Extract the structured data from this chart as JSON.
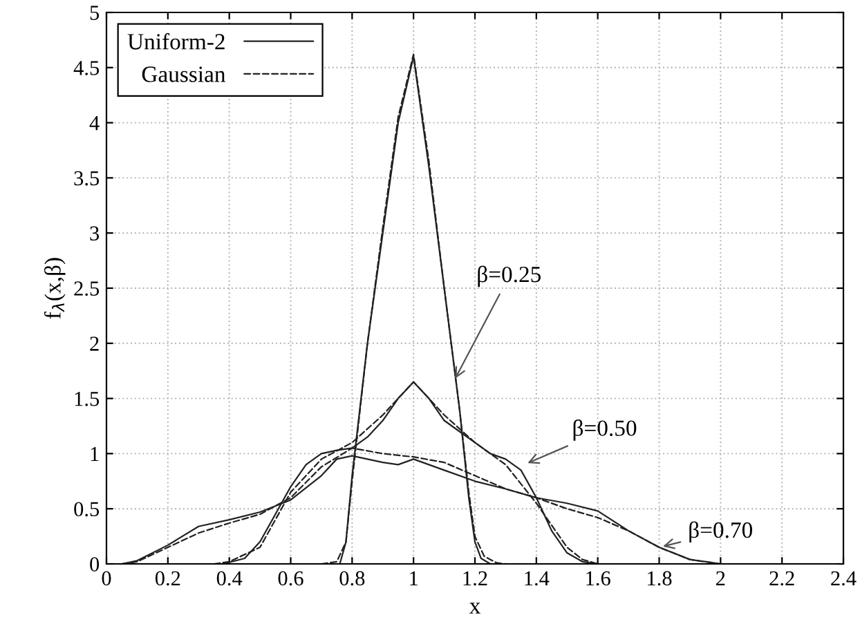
{
  "chart_data": {
    "type": "line",
    "xlabel": "x",
    "ylabel": "f$_{λ}$(x,β)",
    "xlim": [
      0,
      2.4
    ],
    "ylim": [
      0,
      5
    ],
    "xticks": [
      0,
      0.2,
      0.4,
      0.6,
      0.8,
      1,
      1.2,
      1.4,
      1.6,
      1.8,
      2,
      2.2,
      2.4
    ],
    "yticks": [
      0,
      0.5,
      1,
      1.5,
      2,
      2.5,
      3,
      3.5,
      4,
      4.5,
      5
    ],
    "grid": true,
    "legend": "top left",
    "marker": "none",
    "series": [
      {
        "name": "Uniform-2",
        "color": "#222222",
        "line_style": "solid",
        "x": [
          0.7,
          0.76,
          0.78,
          0.8,
          0.85,
          0.9,
          0.95,
          1.0,
          1.05,
          1.1,
          1.15,
          1.18,
          1.2,
          1.22,
          1.25,
          1.3
        ],
        "values": [
          0,
          0,
          0.2,
          0.8,
          2.0,
          3.0,
          4.0,
          4.6,
          3.6,
          2.5,
          1.4,
          0.6,
          0.2,
          0.05,
          0,
          0
        ]
      },
      {
        "name": "Gaussian",
        "color": "#222222",
        "line_style": "dashed",
        "x": [
          0.7,
          0.75,
          0.78,
          0.8,
          0.85,
          0.9,
          0.95,
          1.0,
          1.05,
          1.1,
          1.15,
          1.18,
          1.2,
          1.23,
          1.27,
          1.3
        ],
        "values": [
          0,
          0.02,
          0.2,
          0.75,
          2.0,
          3.05,
          4.05,
          4.62,
          3.65,
          2.5,
          1.4,
          0.65,
          0.25,
          0.07,
          0.01,
          0
        ]
      },
      {
        "color": "#222222",
        "line_style": "solid",
        "x": [
          0.38,
          0.45,
          0.5,
          0.55,
          0.6,
          0.65,
          0.7,
          0.75,
          0.8,
          0.85,
          0.9,
          0.95,
          1.0,
          1.05,
          1.1,
          1.15,
          1.2,
          1.25,
          1.3,
          1.35,
          1.4,
          1.45,
          1.5,
          1.55,
          1.6
        ],
        "values": [
          0,
          0.05,
          0.2,
          0.45,
          0.7,
          0.9,
          1.0,
          1.03,
          1.05,
          1.15,
          1.3,
          1.5,
          1.65,
          1.5,
          1.3,
          1.2,
          1.1,
          1.0,
          0.95,
          0.85,
          0.6,
          0.3,
          0.1,
          0.02,
          0
        ]
      },
      {
        "color": "#222222",
        "line_style": "dashed",
        "x": [
          0.35,
          0.4,
          0.5,
          0.6,
          0.7,
          0.8,
          0.9,
          1.0,
          1.1,
          1.2,
          1.3,
          1.4,
          1.5,
          1.55,
          1.6
        ],
        "values": [
          0,
          0.02,
          0.15,
          0.65,
          0.95,
          1.1,
          1.35,
          1.65,
          1.35,
          1.1,
          0.9,
          0.55,
          0.15,
          0.04,
          0
        ]
      },
      {
        "color": "#222222",
        "line_style": "solid",
        "x": [
          0.05,
          0.1,
          0.2,
          0.3,
          0.4,
          0.5,
          0.6,
          0.7,
          0.75,
          0.8,
          0.85,
          0.9,
          0.95,
          1.0,
          1.1,
          1.2,
          1.3,
          1.4,
          1.5,
          1.6,
          1.7,
          1.8,
          1.9,
          2.0
        ],
        "values": [
          0,
          0.03,
          0.17,
          0.34,
          0.4,
          0.47,
          0.58,
          0.8,
          0.95,
          0.98,
          0.95,
          0.92,
          0.9,
          0.95,
          0.85,
          0.75,
          0.68,
          0.6,
          0.55,
          0.48,
          0.3,
          0.15,
          0.04,
          0
        ]
      },
      {
        "color": "#222222",
        "line_style": "dashed",
        "x": [
          0.05,
          0.1,
          0.2,
          0.3,
          0.4,
          0.5,
          0.6,
          0.7,
          0.8,
          0.9,
          1.0,
          1.1,
          1.2,
          1.3,
          1.4,
          1.5,
          1.6,
          1.7,
          1.8,
          1.9,
          2.0
        ],
        "values": [
          0,
          0.02,
          0.15,
          0.28,
          0.37,
          0.45,
          0.6,
          0.88,
          1.05,
          1.0,
          0.97,
          0.92,
          0.8,
          0.68,
          0.6,
          0.5,
          0.42,
          0.3,
          0.15,
          0.04,
          0
        ]
      }
    ],
    "annotations": [
      {
        "text": "β=0.25",
        "x": 1.13,
        "y": 1.65
      },
      {
        "text": "β=0.50",
        "x": 1.36,
        "y": 0.9
      },
      {
        "text": "β=0.70",
        "x": 1.8,
        "y": 0.15
      }
    ]
  }
}
